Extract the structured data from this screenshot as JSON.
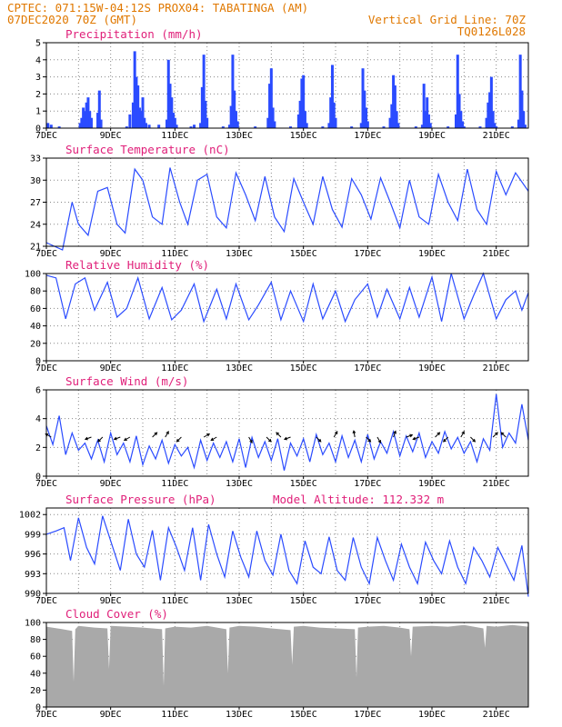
{
  "header": {
    "line1": "CPTEC:  071:15W-04:12S  PROX04: TABATINGA (AM)",
    "line2_left": "07DEC2020 70Z (GMT)",
    "line2_right": "Vertical Grid Line: 70Z",
    "line3_right": "TQ0126L028"
  },
  "colors": {
    "header": "#e07800",
    "title": "#e0207a",
    "series": "#2a4bff",
    "cloud": "#a9a9a9",
    "grid": "#888888"
  },
  "chart_data": [
    {
      "id": "precip",
      "type": "bar",
      "title": "Precipitation (mm/h)",
      "ylim": [
        0,
        5
      ],
      "yticks": [
        "5",
        "4",
        "3",
        "2",
        "1",
        "0"
      ],
      "xticks": [
        "7DEC",
        "9DEC",
        "11DEC",
        "13DEC",
        "15DEC",
        "17DEC",
        "19DEC",
        "21DEC"
      ],
      "xlim_days": [
        0,
        15
      ],
      "x_days": [
        0.05,
        0.15,
        0.4,
        1.05,
        1.1,
        1.15,
        1.2,
        1.25,
        1.3,
        1.35,
        1.4,
        1.6,
        1.65,
        1.7,
        2.5,
        2.6,
        2.7,
        2.75,
        2.8,
        2.85,
        2.9,
        2.95,
        3.0,
        3.05,
        3.1,
        3.2,
        3.5,
        3.75,
        3.8,
        3.85,
        3.9,
        3.95,
        4.0,
        4.05,
        4.5,
        4.6,
        4.8,
        4.85,
        4.9,
        4.95,
        5.0,
        5.5,
        5.7,
        5.75,
        5.8,
        5.85,
        5.9,
        5.95,
        6.5,
        6.9,
        6.95,
        7.0,
        7.05,
        7.1,
        7.6,
        7.85,
        7.9,
        7.95,
        8.0,
        8.05,
        8.1,
        8.6,
        8.8,
        8.85,
        8.9,
        8.95,
        9.0,
        9.5,
        9.8,
        9.85,
        9.9,
        9.95,
        10.0,
        10.5,
        10.7,
        10.75,
        10.8,
        10.85,
        10.9,
        10.95,
        11.5,
        11.7,
        11.75,
        11.8,
        11.85,
        11.9,
        11.95,
        12.5,
        12.75,
        12.8,
        12.85,
        12.9,
        12.95,
        13.0,
        13.5,
        13.7,
        13.75,
        13.8,
        13.85,
        13.9,
        13.95,
        14.0,
        14.5,
        14.7,
        14.75,
        14.8,
        14.85,
        14.9
      ],
      "values": [
        0.3,
        0.2,
        0.1,
        0.3,
        0.6,
        1.2,
        1.0,
        1.5,
        1.8,
        1.0,
        0.6,
        0.9,
        2.2,
        0.5,
        0.1,
        0.8,
        1.5,
        4.5,
        3.0,
        2.5,
        1.2,
        1.0,
        1.8,
        0.6,
        0.3,
        0.2,
        0.2,
        0.5,
        4.0,
        2.6,
        1.8,
        0.9,
        0.6,
        0.2,
        0.1,
        0.2,
        0.3,
        2.4,
        4.3,
        1.6,
        0.6,
        0.1,
        0.2,
        1.3,
        4.3,
        2.2,
        1.0,
        0.4,
        0.1,
        0.6,
        2.6,
        3.5,
        1.2,
        0.4,
        0.1,
        0.8,
        1.6,
        2.9,
        3.1,
        1.0,
        0.3,
        0.1,
        0.3,
        1.8,
        3.7,
        1.5,
        0.6,
        0.1,
        0.3,
        3.5,
        2.2,
        1.2,
        0.4,
        0.1,
        0.6,
        1.4,
        3.1,
        2.5,
        1.0,
        0.3,
        0.1,
        0.2,
        2.6,
        1.0,
        1.8,
        0.8,
        0.3,
        0.1,
        0.8,
        4.3,
        2.0,
        1.0,
        0.4,
        0.1,
        0.1,
        0.6,
        1.5,
        2.1,
        3.0,
        1.0,
        0.3,
        0.1,
        0.1,
        0.5,
        4.3,
        2.2,
        1.0,
        0.2
      ]
    },
    {
      "id": "temp",
      "type": "line",
      "title": "Surface Temperature (nC)",
      "ylim": [
        21,
        33
      ],
      "yticks": [
        "33",
        "30",
        "27",
        "24",
        "21"
      ],
      "xticks": [
        "7DEC",
        "9DEC",
        "11DEC",
        "13DEC",
        "15DEC",
        "17DEC",
        "19DEC",
        "21DEC"
      ],
      "xlim_days": [
        0,
        15
      ],
      "x_days": [
        0,
        0.25,
        0.5,
        0.8,
        1.0,
        1.3,
        1.6,
        1.9,
        2.2,
        2.45,
        2.75,
        3.0,
        3.3,
        3.6,
        3.85,
        4.15,
        4.4,
        4.7,
        5.0,
        5.3,
        5.6,
        5.9,
        6.2,
        6.5,
        6.8,
        7.1,
        7.4,
        7.7,
        8.0,
        8.3,
        8.6,
        8.9,
        9.2,
        9.5,
        9.8,
        10.1,
        10.4,
        10.7,
        11.0,
        11.3,
        11.6,
        11.9,
        12.2,
        12.5,
        12.8,
        13.1,
        13.4,
        13.7,
        14.0,
        14.3,
        14.6,
        15.0
      ],
      "values": [
        21.5,
        21,
        20.5,
        27,
        24,
        22.5,
        28.5,
        29,
        24,
        22.8,
        31.5,
        30,
        25,
        24,
        31.7,
        27,
        24,
        30,
        30.8,
        25,
        23.5,
        31,
        28,
        24.5,
        30.5,
        25,
        23,
        30.2,
        27,
        24,
        30.5,
        26,
        23.6,
        30.2,
        28,
        24.7,
        30.3,
        27,
        23.5,
        30,
        25,
        24,
        30.8,
        27,
        24.5,
        31.5,
        26,
        24,
        31.2,
        28,
        31,
        28.5
      ]
    },
    {
      "id": "rh",
      "type": "line",
      "title": "Relative Humidity (%)",
      "ylim": [
        0,
        100
      ],
      "yticks": [
        "100",
        "80",
        "60",
        "40",
        "20",
        "0"
      ],
      "xticks": [
        "7DEC",
        "9DEC",
        "11DEC",
        "13DEC",
        "15DEC",
        "17DEC",
        "19DEC",
        "21DEC"
      ],
      "xlim_days": [
        0,
        15
      ],
      "x_days": [
        0,
        0.3,
        0.6,
        0.9,
        1.2,
        1.5,
        1.9,
        2.2,
        2.5,
        2.85,
        3.2,
        3.6,
        3.9,
        4.2,
        4.6,
        4.9,
        5.3,
        5.6,
        5.9,
        6.3,
        6.6,
        7.0,
        7.3,
        7.6,
        8.0,
        8.3,
        8.6,
        9.0,
        9.3,
        9.6,
        10.0,
        10.3,
        10.6,
        11.0,
        11.3,
        11.6,
        12.0,
        12.3,
        12.6,
        13.0,
        13.3,
        13.6,
        14.0,
        14.3,
        14.6,
        14.8,
        15.0
      ],
      "values": [
        98,
        95,
        48,
        88,
        95,
        58,
        90,
        50,
        60,
        95,
        48,
        84,
        47,
        58,
        88,
        45,
        82,
        48,
        88,
        47,
        64,
        90,
        47,
        80,
        45,
        88,
        48,
        80,
        45,
        70,
        88,
        50,
        82,
        48,
        84,
        50,
        96,
        45,
        100,
        48,
        75,
        100,
        48,
        70,
        80,
        58,
        78
      ]
    },
    {
      "id": "wind",
      "type": "line",
      "title": "Surface Wind (m/s)",
      "ylim": [
        0,
        6
      ],
      "yticks": [
        "6",
        "4",
        "2",
        "0"
      ],
      "xticks": [
        "7DEC",
        "9DEC",
        "11DEC",
        "13DEC",
        "15DEC",
        "17DEC",
        "19DEC",
        "21DEC"
      ],
      "xlim_days": [
        0,
        15
      ],
      "x_days": [
        0,
        0.2,
        0.4,
        0.6,
        0.8,
        1.0,
        1.2,
        1.4,
        1.6,
        1.8,
        2.0,
        2.2,
        2.4,
        2.6,
        2.8,
        3.0,
        3.2,
        3.4,
        3.6,
        3.8,
        4.0,
        4.2,
        4.4,
        4.6,
        4.8,
        5.0,
        5.2,
        5.4,
        5.6,
        5.8,
        6.0,
        6.2,
        6.4,
        6.6,
        6.8,
        7.0,
        7.2,
        7.4,
        7.6,
        7.8,
        8.0,
        8.2,
        8.4,
        8.6,
        8.8,
        9.0,
        9.2,
        9.4,
        9.6,
        9.8,
        10.0,
        10.2,
        10.4,
        10.6,
        10.8,
        11.0,
        11.2,
        11.4,
        11.6,
        11.8,
        12.0,
        12.2,
        12.4,
        12.6,
        12.8,
        13.0,
        13.2,
        13.4,
        13.6,
        13.8,
        14.0,
        14.2,
        14.4,
        14.6,
        14.8,
        15.0
      ],
      "values": [
        3.5,
        2.2,
        4.2,
        1.5,
        3.0,
        1.8,
        2.3,
        1.2,
        2.5,
        1.0,
        3.0,
        1.5,
        2.3,
        1.0,
        2.8,
        0.8,
        2.1,
        1.2,
        2.5,
        0.9,
        2.2,
        1.4,
        2.0,
        0.6,
        2.5,
        1.1,
        2.3,
        1.3,
        2.4,
        1.0,
        2.6,
        0.6,
        2.7,
        1.3,
        2.4,
        1.1,
        2.6,
        0.4,
        2.3,
        1.4,
        2.6,
        1.0,
        2.9,
        1.5,
        2.3,
        1.0,
        2.8,
        1.3,
        2.5,
        1.0,
        2.9,
        1.2,
        2.4,
        1.6,
        3.1,
        1.4,
        2.8,
        1.7,
        3.0,
        1.3,
        2.4,
        1.6,
        3.1,
        1.9,
        2.7,
        1.6,
        2.4,
        1.0,
        2.6,
        1.8,
        5.7,
        2.0,
        3.0,
        2.3,
        5.0,
        2.5
      ],
      "arrows_days": [
        0.15,
        1.4,
        1.75,
        2.3,
        2.6,
        3.3,
        3.7,
        4.2,
        4.9,
        5.3,
        6.3,
        6.85,
        7.3,
        7.6,
        8.4,
        8.95,
        9.6,
        9.95,
        10.3,
        10.8,
        11.2,
        11.6,
        12.1,
        12.5,
        12.9,
        13.2,
        13.9,
        14.3
      ],
      "arrows_dir_deg": [
        150,
        200,
        225,
        200,
        210,
        45,
        60,
        225,
        30,
        210,
        300,
        315,
        135,
        200,
        315,
        60,
        100,
        315,
        300,
        70,
        20,
        200,
        45,
        225,
        60,
        315,
        45,
        135
      ]
    },
    {
      "id": "pres",
      "type": "line",
      "title": "Surface Pressure (hPa)",
      "annotation": "Model Altitude: 112.332 m",
      "ylim": [
        990,
        1003
      ],
      "yticks": [
        "1002",
        "999",
        "996",
        "993",
        "990"
      ],
      "xticks": [
        "7DEC",
        "9DEC",
        "11DEC",
        "13DEC",
        "15DEC",
        "17DEC",
        "19DEC",
        "21DEC"
      ],
      "xlim_days": [
        0,
        15
      ],
      "x_days": [
        0,
        0.3,
        0.55,
        0.75,
        1.0,
        1.25,
        1.5,
        1.75,
        2.0,
        2.3,
        2.55,
        2.8,
        3.05,
        3.3,
        3.55,
        3.8,
        4.05,
        4.3,
        4.55,
        4.8,
        5.05,
        5.3,
        5.55,
        5.8,
        6.05,
        6.3,
        6.55,
        6.8,
        7.05,
        7.3,
        7.55,
        7.8,
        8.05,
        8.3,
        8.55,
        8.8,
        9.05,
        9.3,
        9.55,
        9.8,
        10.05,
        10.3,
        10.55,
        10.8,
        11.05,
        11.3,
        11.55,
        11.8,
        12.05,
        12.3,
        12.55,
        12.8,
        13.05,
        13.3,
        13.55,
        13.8,
        14.05,
        14.3,
        14.55,
        14.8,
        15.0
      ],
      "values": [
        999,
        999.5,
        1000,
        995,
        1001.5,
        997,
        994.5,
        1001.8,
        998,
        993.5,
        1001.3,
        996,
        994,
        999.6,
        992,
        1000,
        997,
        993.5,
        1000,
        992,
        1000.5,
        996,
        992.5,
        999.5,
        995.5,
        992.5,
        999.5,
        995,
        992.8,
        999,
        993.5,
        991.5,
        998,
        994,
        993,
        998.6,
        993.5,
        992,
        998.5,
        994,
        991.5,
        998.5,
        995,
        992,
        997.5,
        994,
        991.5,
        997.8,
        995,
        993,
        998,
        994,
        991.5,
        997,
        995,
        992.5,
        997,
        994.5,
        992,
        997.3,
        989.5
      ]
    },
    {
      "id": "cloud",
      "type": "area",
      "title": "Cloud Cover (%)",
      "ylim": [
        0,
        100
      ],
      "yticks": [
        "100",
        "80",
        "60",
        "40",
        "20",
        "0"
      ],
      "xticks": [
        "7DEC",
        "9DEC",
        "11DEC",
        "13DEC",
        "15DEC",
        "17DEC",
        "19DEC",
        "21DEC"
      ],
      "xlim_days": [
        0,
        15
      ],
      "x_days": [
        0,
        0.5,
        0.8,
        0.85,
        0.9,
        1.0,
        1.5,
        1.9,
        1.95,
        2.0,
        2.5,
        3.0,
        3.6,
        3.65,
        3.7,
        4.0,
        4.5,
        5.0,
        5.6,
        5.65,
        5.7,
        6.0,
        6.5,
        7.0,
        7.6,
        7.65,
        7.7,
        8.0,
        8.5,
        9.0,
        9.6,
        9.65,
        9.7,
        10.0,
        10.5,
        11.0,
        11.3,
        11.35,
        11.4,
        12.0,
        12.5,
        13.0,
        13.6,
        13.65,
        13.7,
        14.0,
        14.5,
        15.0
      ],
      "values": [
        95,
        92,
        90,
        30,
        92,
        96,
        94,
        93,
        45,
        96,
        95,
        94,
        92,
        25,
        93,
        95,
        94,
        96,
        92,
        40,
        94,
        96,
        95,
        93,
        91,
        50,
        95,
        96,
        94,
        93,
        92,
        35,
        94,
        95,
        96,
        94,
        92,
        60,
        95,
        96,
        95,
        97,
        93,
        70,
        96,
        95,
        97,
        95
      ]
    }
  ]
}
